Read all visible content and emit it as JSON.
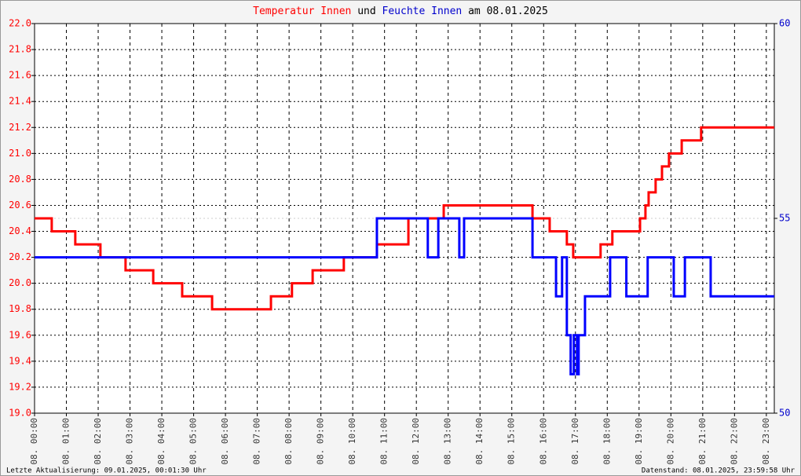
{
  "chart_data": {
    "type": "line",
    "title_parts": [
      {
        "text": "Temperatur Innen",
        "color": "#ff0000"
      },
      {
        "text": "und",
        "color": "#000000"
      },
      {
        "text": "Feuchte Innen",
        "color": "#0000cc"
      },
      {
        "text": "am 08.01.2025",
        "color": "#000000"
      }
    ],
    "footer_left": "Letzte Aktualisierung: 09.01.2025, 00:01:30 Uhr",
    "footer_right": "Datenstand: 08.01.2025, 23:59:58 Uhr",
    "xlim": [
      0,
      23.25
    ],
    "xticks": [
      {
        "value": 0,
        "label": "08. 00:00"
      },
      {
        "value": 1,
        "label": "08. 01:00"
      },
      {
        "value": 2,
        "label": "08. 02:00"
      },
      {
        "value": 3,
        "label": "08. 03:00"
      },
      {
        "value": 4,
        "label": "08. 04:00"
      },
      {
        "value": 5,
        "label": "08. 05:00"
      },
      {
        "value": 6,
        "label": "08. 06:00"
      },
      {
        "value": 7,
        "label": "08. 07:00"
      },
      {
        "value": 8,
        "label": "08. 08:00"
      },
      {
        "value": 9,
        "label": "08. 09:00"
      },
      {
        "value": 10,
        "label": "08. 10:00"
      },
      {
        "value": 11,
        "label": "08. 11:00"
      },
      {
        "value": 12,
        "label": "08. 12:00"
      },
      {
        "value": 13,
        "label": "08. 13:00"
      },
      {
        "value": 14,
        "label": "08. 14:00"
      },
      {
        "value": 15,
        "label": "08. 15:00"
      },
      {
        "value": 16,
        "label": "08. 16:00"
      },
      {
        "value": 17,
        "label": "08. 17:00"
      },
      {
        "value": 18,
        "label": "08. 18:00"
      },
      {
        "value": 19,
        "label": "08. 19:00"
      },
      {
        "value": 20,
        "label": "08. 20:00"
      },
      {
        "value": 21,
        "label": "08. 21:00"
      },
      {
        "value": 22,
        "label": "08. 22:00"
      },
      {
        "value": 23,
        "label": "08. 23:00"
      }
    ],
    "ylim": [
      19.0,
      22.0
    ],
    "yticks": [
      {
        "value": 19.0,
        "label": "19.0"
      },
      19.2,
      19.4,
      19.6,
      19.8,
      {
        "value": 20.0,
        "label": "20.0"
      },
      20.2,
      20.4,
      20.6,
      20.8,
      {
        "value": 21.0,
        "label": "21.0"
      },
      21.2,
      21.4,
      21.6,
      21.8,
      {
        "value": 22.0,
        "label": "22.0"
      }
    ],
    "y2lim": [
      50,
      60
    ],
    "y2ticks": [
      50,
      55,
      60
    ],
    "grid": true,
    "series": [
      {
        "name": "Temperatur Innen",
        "color": "#ff0000",
        "x": [
          0,
          0.54,
          0.54,
          1.28,
          1.28,
          2.07,
          2.07,
          2.86,
          2.86,
          3.73,
          3.73,
          4.64,
          4.64,
          5.58,
          5.58,
          7.43,
          7.43,
          8.09,
          8.09,
          8.74,
          8.74,
          9.72,
          9.72,
          10.76,
          10.76,
          11.75,
          11.75,
          12.86,
          12.86,
          15.65,
          15.65,
          16.19,
          16.19,
          16.73,
          16.73,
          16.93,
          16.93,
          17.79,
          17.79,
          18.16,
          18.16,
          19.03,
          19.03,
          19.2,
          19.2,
          19.3,
          19.3,
          19.52,
          19.52,
          19.72,
          19.72,
          19.94,
          19.94,
          20.34,
          20.34,
          20.95,
          20.95,
          23.25
        ],
        "values": [
          20.5,
          20.5,
          20.4,
          20.4,
          20.3,
          20.3,
          20.2,
          20.2,
          20.1,
          20.1,
          20.0,
          20.0,
          19.9,
          19.9,
          19.8,
          19.8,
          19.9,
          19.9,
          20.0,
          20.0,
          20.1,
          20.1,
          20.2,
          20.2,
          20.3,
          20.3,
          20.5,
          20.5,
          20.6,
          20.6,
          20.5,
          20.5,
          20.4,
          20.4,
          20.3,
          20.3,
          20.2,
          20.2,
          20.3,
          20.3,
          20.4,
          20.4,
          20.5,
          20.5,
          20.6,
          20.6,
          20.7,
          20.7,
          20.8,
          20.8,
          20.9,
          20.9,
          21.0,
          21.0,
          21.1,
          21.1,
          21.2,
          21.2
        ]
      },
      {
        "name": "Feuchte Innen",
        "color": "#0000ff",
        "axis": "y2",
        "x": [
          0,
          10.76,
          10.76,
          12.36,
          12.36,
          12.69,
          12.69,
          13.35,
          13.35,
          13.5,
          13.5,
          15.65,
          15.65,
          16.39,
          16.39,
          16.58,
          16.58,
          16.73,
          16.73,
          16.85,
          16.85,
          16.95,
          16.95,
          17.05,
          17.05,
          17.1,
          17.1,
          17.3,
          17.3,
          18.09,
          18.09,
          18.6,
          18.6,
          19.27,
          19.27,
          20.09,
          20.09,
          20.44,
          20.44,
          21.25,
          21.25,
          23.25
        ],
        "values": [
          54,
          54,
          55,
          55,
          54,
          54,
          55,
          55,
          54,
          54,
          55,
          55,
          54,
          54,
          53,
          53,
          54,
          54,
          52,
          52,
          51,
          51,
          52,
          52,
          51,
          51,
          52,
          52,
          53,
          53,
          54,
          54,
          53,
          53,
          54,
          54,
          53,
          53,
          54,
          54,
          53,
          53
        ]
      }
    ]
  }
}
